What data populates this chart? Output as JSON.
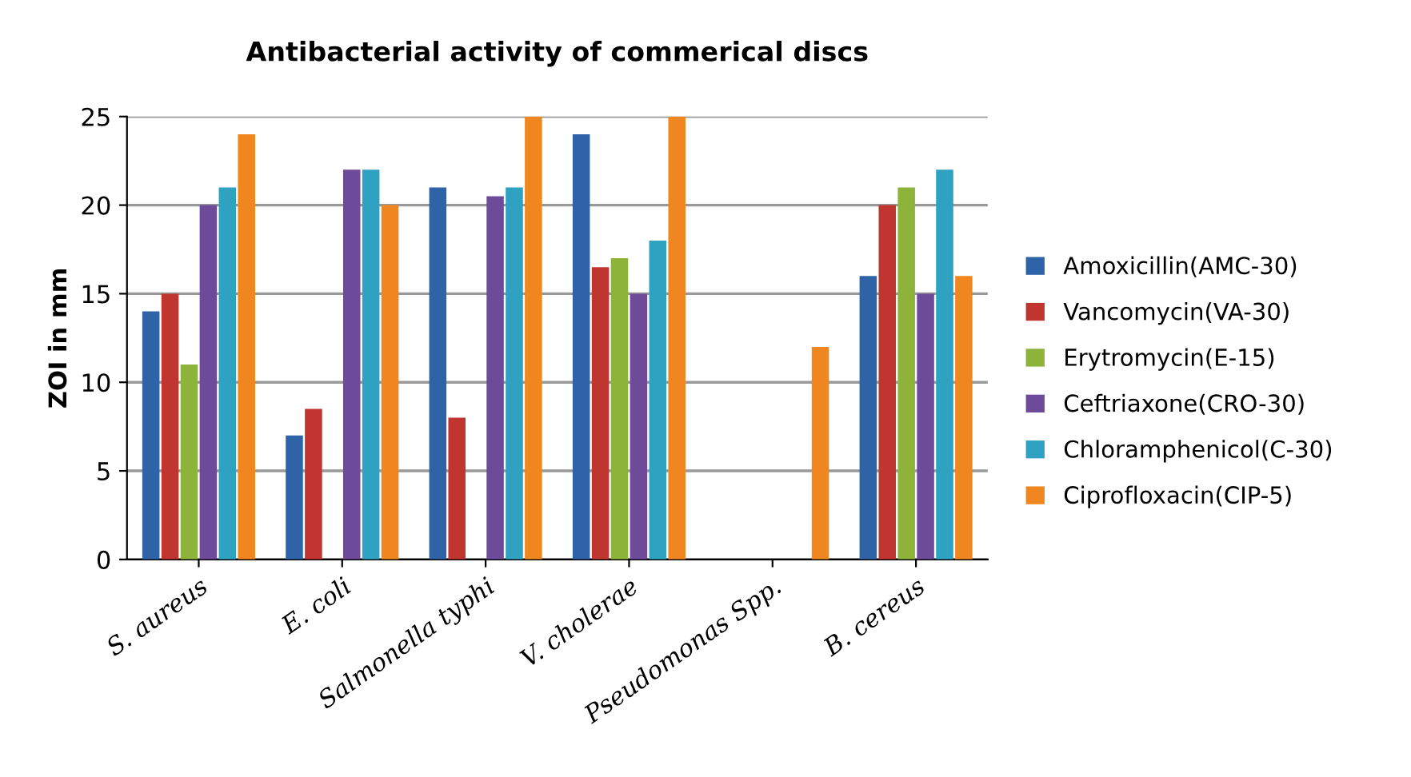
{
  "chart_data": {
    "type": "bar",
    "title": "Antibacterial activity of commerical discs",
    "ylabel": "ZOI in mm",
    "categories": [
      "S. aureus",
      "E. coli",
      "Salmonella typhi",
      "V. cholerae",
      "Pseudomonas Spp.",
      "B. cereus"
    ],
    "series": [
      {
        "name": "Amoxicillin(AMC-30)",
        "color": "#2e63a8",
        "values": [
          14,
          7,
          21,
          24,
          0,
          16
        ]
      },
      {
        "name": "Vancomycin(VA-30)",
        "color": "#c0352f",
        "values": [
          15,
          8.5,
          8,
          16.5,
          0,
          20
        ]
      },
      {
        "name": "Erytromycin(E-15)",
        "color": "#8db33a",
        "values": [
          11,
          0,
          0,
          17,
          0,
          21
        ]
      },
      {
        "name": "Ceftriaxone(CRO-30)",
        "color": "#6e4a9a",
        "values": [
          20,
          22,
          20.5,
          15,
          0,
          15
        ]
      },
      {
        "name": "Chloramphenicol(C-30)",
        "color": "#2fa2c2",
        "values": [
          21,
          22,
          21,
          18,
          0,
          22
        ]
      },
      {
        "name": "Ciprofloxacin(CIP-5)",
        "color": "#f0861f",
        "values": [
          24,
          20,
          25,
          25,
          12,
          16
        ]
      }
    ],
    "ylim": [
      0,
      25
    ],
    "yticks": [
      0,
      5,
      10,
      15,
      20,
      25
    ],
    "grid": "y",
    "legend": "right"
  }
}
